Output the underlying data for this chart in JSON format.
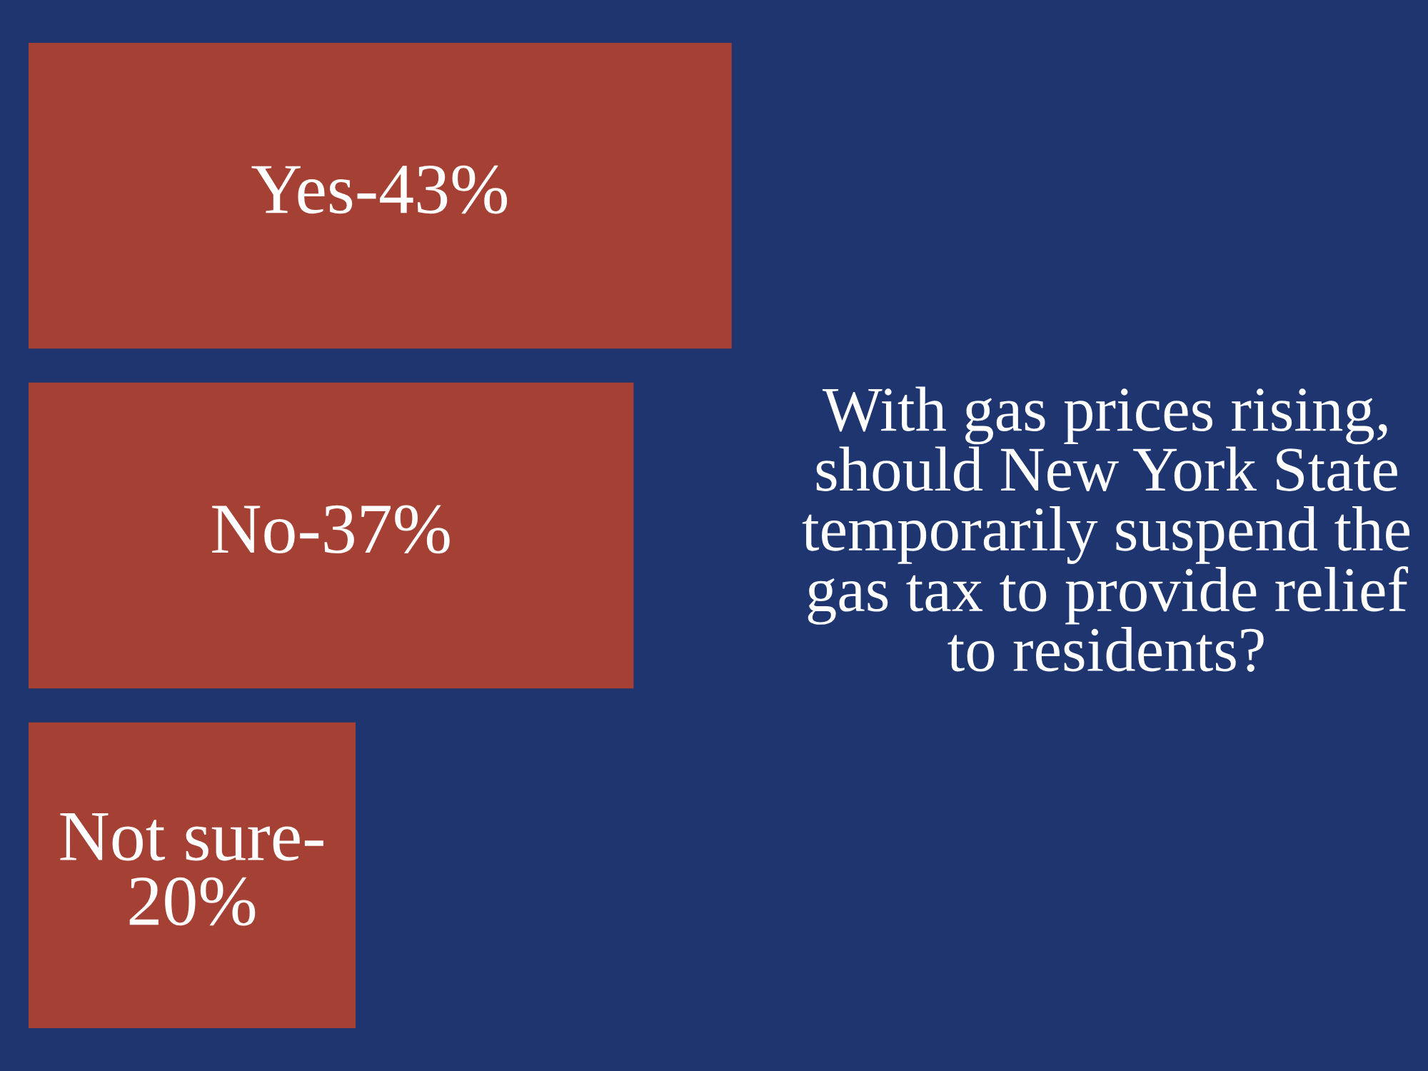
{
  "chart_data": {
    "type": "bar",
    "orientation": "horizontal",
    "title": "With gas prices rising, should New York State temporarily suspend the gas tax to provide relief to residents?",
    "categories": [
      "Yes-",
      "No-",
      "Not sure-"
    ],
    "values": [
      43,
      37,
      20
    ],
    "value_labels": [
      "43%",
      "37%",
      "20%"
    ],
    "color": "#a54034",
    "tick_labels": false
  }
}
